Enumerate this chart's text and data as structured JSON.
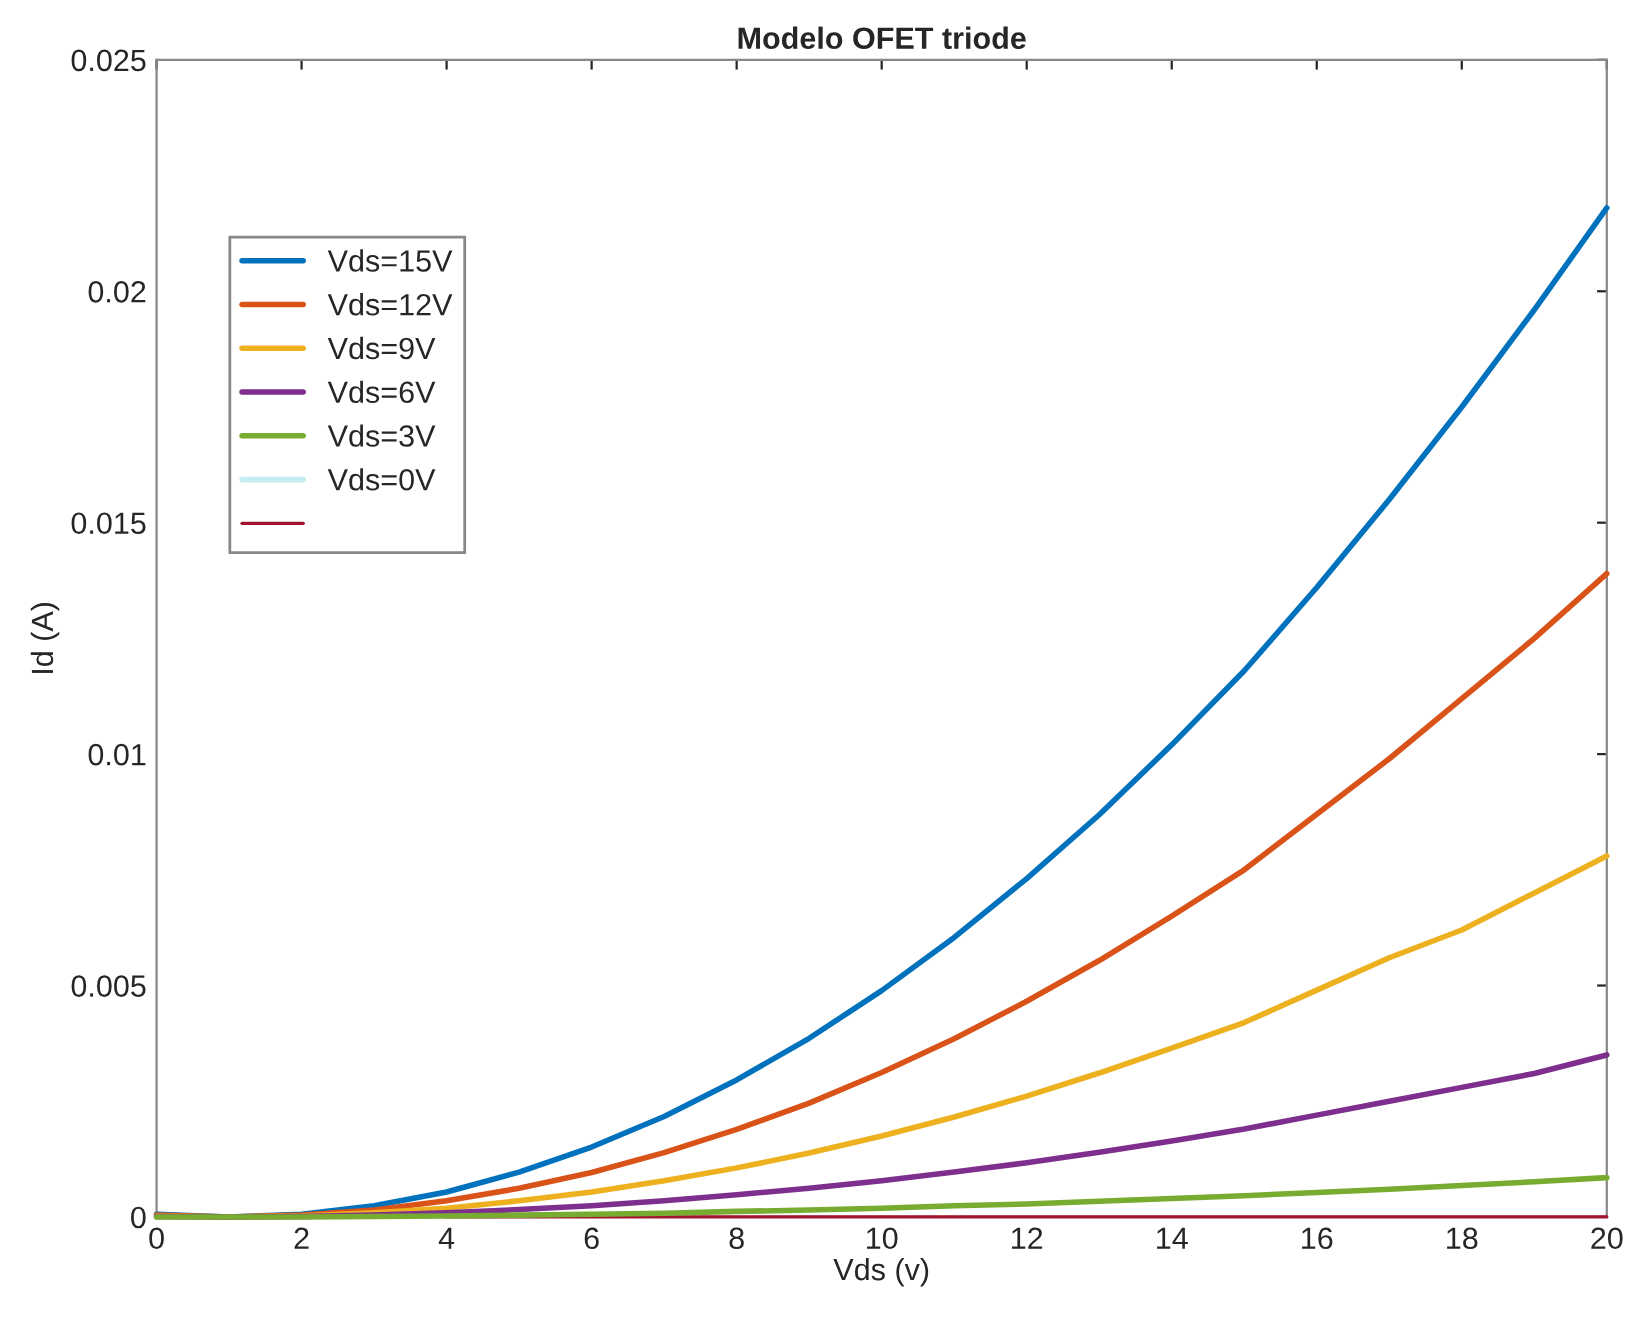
{
  "chart_data": {
    "type": "line",
    "title": "Modelo OFET triode",
    "xlabel": "Vds (v)",
    "ylabel": "Id (A)",
    "x": [
      0,
      1,
      2,
      3,
      4,
      5,
      6,
      7,
      8,
      9,
      10,
      11,
      12,
      13,
      14,
      15,
      16,
      17,
      18,
      19,
      20
    ],
    "series": [
      {
        "name": "Vds=15V",
        "color": "#0072bd",
        "values": [
          6e-05,
          0,
          6e-05,
          0.00024,
          0.00054,
          0.00097,
          0.00151,
          0.00217,
          0.00296,
          0.00386,
          0.00489,
          0.00604,
          0.00731,
          0.00869,
          0.0102,
          0.0118,
          0.0136,
          0.0155,
          0.0175,
          0.0196,
          0.0218
        ]
      },
      {
        "name": "Vds=12V",
        "color": "#d95319",
        "values": [
          4e-05,
          0,
          4e-05,
          0.00015,
          0.00035,
          0.00062,
          0.00096,
          0.00139,
          0.00189,
          0.00246,
          0.00312,
          0.00385,
          0.00466,
          0.00554,
          0.0065,
          0.0075,
          0.0087,
          0.0099,
          0.0112,
          0.0125,
          0.0139
        ]
      },
      {
        "name": "Vds=9V",
        "color": "#edb120",
        "values": [
          2e-05,
          0,
          2e-05,
          9e-05,
          0.00019,
          0.00035,
          0.00054,
          0.00078,
          0.00106,
          0.00138,
          0.00175,
          0.00216,
          0.00261,
          0.00311,
          0.00365,
          0.0042,
          0.0049,
          0.0056,
          0.0062,
          0.007,
          0.0078
        ]
      },
      {
        "name": "Vds=6V",
        "color": "#7e2f8e",
        "values": [
          1e-05,
          0,
          1e-05,
          4e-05,
          9e-05,
          0.00016,
          0.00024,
          0.00035,
          0.00048,
          0.00062,
          0.00078,
          0.00097,
          0.00117,
          0.0014,
          0.00164,
          0.0019,
          0.0022,
          0.0025,
          0.0028,
          0.0031,
          0.0035
        ]
      },
      {
        "name": "Vds=3V",
        "color": "#77ac30",
        "values": [
          0,
          0,
          0,
          1e-05,
          2e-05,
          4e-05,
          6e-05,
          8e-05,
          0.00012,
          0.00015,
          0.00019,
          0.00024,
          0.00028,
          0.00034,
          0.0004,
          0.00046,
          0.00053,
          0.0006,
          0.00068,
          0.00076,
          0.00085
        ]
      },
      {
        "name": "Vds=0V",
        "color": "#c6ecf0",
        "values": [
          null,
          null,
          null,
          null,
          null,
          null,
          null,
          null,
          null,
          null,
          null,
          null,
          null,
          null,
          null,
          null,
          null,
          null,
          null,
          null,
          null
        ]
      },
      {
        "color": "#a2142f",
        "values": [
          null,
          null,
          null,
          null,
          0,
          0,
          0,
          0,
          0,
          0,
          0,
          0,
          0,
          0,
          0,
          0,
          0,
          0,
          0,
          0,
          0
        ]
      }
    ],
    "xlim": [
      0,
      20
    ],
    "xticks": [
      0,
      2,
      4,
      6,
      8,
      10,
      12,
      14,
      16,
      18,
      20
    ],
    "ylim": [
      0,
      0.025
    ],
    "yticks": [
      {
        "value": 0,
        "label": "0"
      },
      {
        "value": 0.005,
        "label": "0.005"
      },
      {
        "value": 0.01,
        "label": "0.01"
      },
      {
        "value": 0.015,
        "label": "0.015"
      },
      {
        "value": 0.02,
        "label": "0.02"
      },
      {
        "value": 0.025,
        "label": "0.025"
      }
    ],
    "legend": "top left",
    "grid": false,
    "marker": "none",
    "line_style": "solid"
  }
}
